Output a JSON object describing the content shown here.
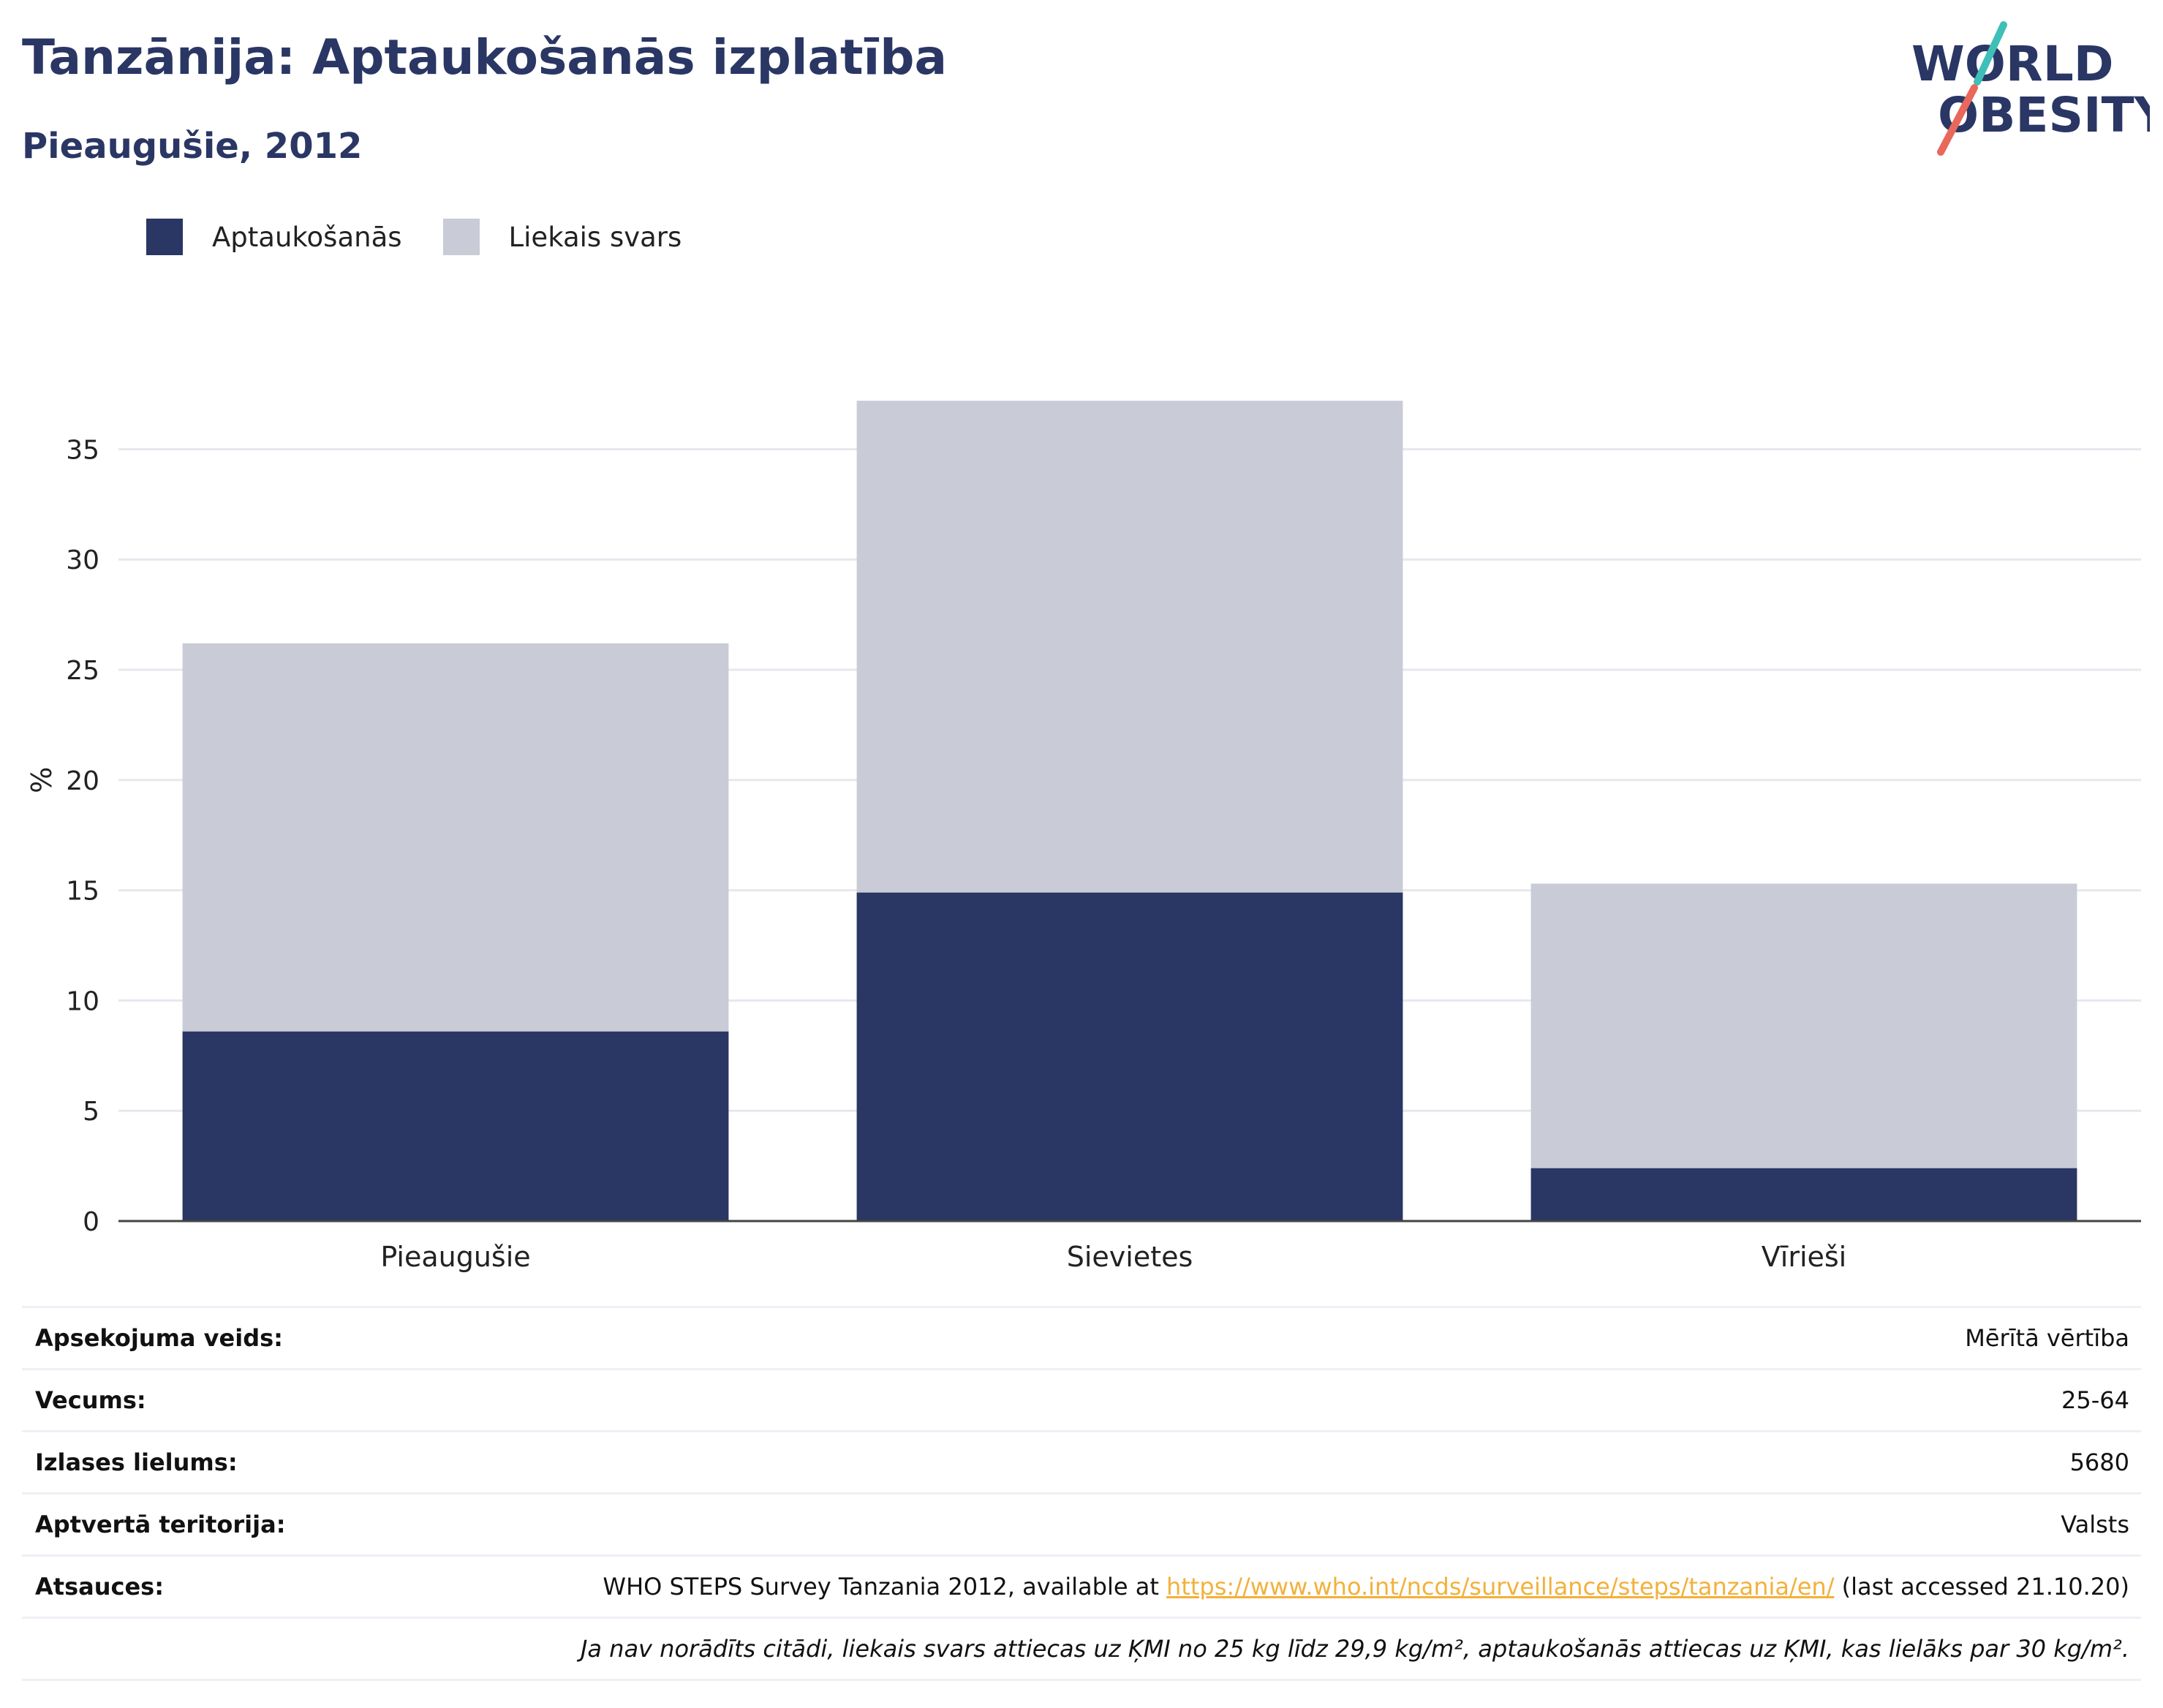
{
  "header": {
    "title": "Tanzānija: Aptaukošanās izplatība",
    "subtitle": "Pieaugušie, 2012"
  },
  "logo": {
    "line1": "WORLD",
    "line2": "OBESITY",
    "colors": {
      "text": "#2a3664",
      "slash_top": "#3fbfb8",
      "slash_bottom": "#e8685b"
    }
  },
  "legend": [
    {
      "label": "Aptaukošanās",
      "color": "#2a3664"
    },
    {
      "label": "Liekais svars",
      "color": "#c9cbd6"
    }
  ],
  "chart_data": {
    "type": "bar",
    "stacked": true,
    "categories": [
      "Pieaugušie",
      "Sievietes",
      "Vīrieši"
    ],
    "series": [
      {
        "name": "Aptaukošanās",
        "values": [
          8.6,
          14.9,
          2.4
        ],
        "color": "#2a3664"
      },
      {
        "name": "Liekais svars",
        "values": [
          17.6,
          22.3,
          12.9
        ],
        "color": "#c9cbd6"
      }
    ],
    "ylabel": "%",
    "xlabel": "",
    "ylim": [
      0,
      37.8
    ],
    "yticks": [
      0,
      5,
      10,
      15,
      20,
      25,
      30,
      35
    ],
    "grid": true
  },
  "info": {
    "survey_type": {
      "label": "Apsekojuma veids:",
      "value": "Mērītā vērtība"
    },
    "age": {
      "label": "Vecums:",
      "value": "25-64"
    },
    "sample_size": {
      "label": "Izlases lielums:",
      "value": "5680"
    },
    "coverage": {
      "label": "Aptvertā teritorija:",
      "value": "Valsts"
    },
    "references": {
      "label": "Atsauces:",
      "prefix": "WHO STEPS Survey Tanzania 2012, available at ",
      "link": "https://www.who.int/ncds/surveillance/steps/tanzania/en/",
      "suffix": " (last accessed 21.10.20)"
    },
    "note": "Ja nav norādīts citādi, liekais svars attiecas uz ĶMI no 25 kg līdz 29,9 kg/m², aptaukošanās attiecas uz ĶMI, kas lielāks par 30 kg/m²."
  }
}
